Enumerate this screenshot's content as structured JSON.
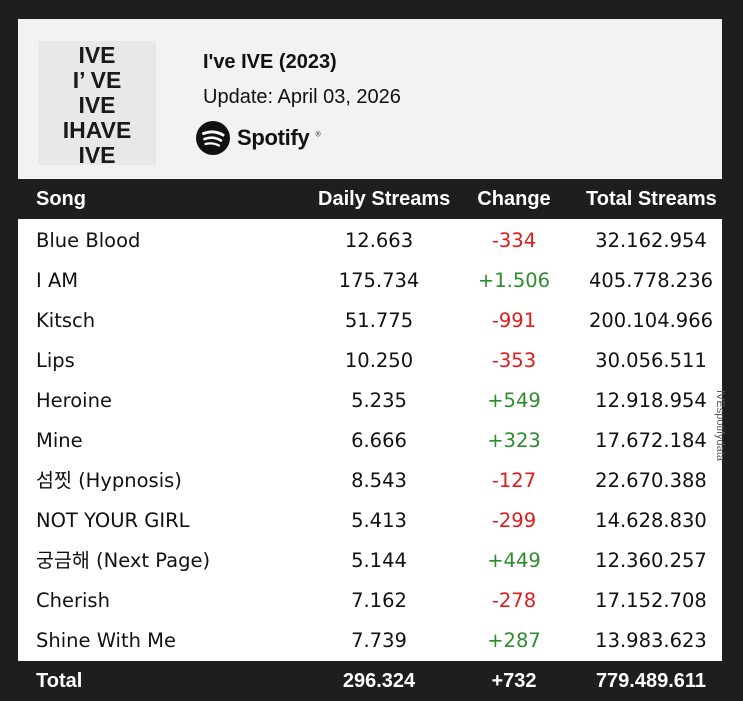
{
  "header": {
    "album_title": "I've IVE (2023)",
    "update_line": "Update: April 03, 2026",
    "cover_lines": [
      "IVE",
      "I’ VE",
      "IVE",
      "IHAVE",
      "IVE"
    ],
    "brand": "Spotify",
    "brand_icon": "spotify-logo-icon"
  },
  "columns": {
    "song": "Song",
    "daily": "Daily Streams",
    "change": "Change",
    "total": "Total Streams"
  },
  "rows": [
    {
      "song": "Blue Blood",
      "daily": "12.663",
      "change": "-334",
      "trend": "down",
      "total": "32.162.954"
    },
    {
      "song": "I AM",
      "daily": "175.734",
      "change": "+1.506",
      "trend": "up",
      "total": "405.778.236"
    },
    {
      "song": "Kitsch",
      "daily": "51.775",
      "change": "-991",
      "trend": "down",
      "total": "200.104.966"
    },
    {
      "song": "Lips",
      "daily": "10.250",
      "change": "-353",
      "trend": "down",
      "total": "30.056.511"
    },
    {
      "song": "Heroine",
      "daily": "5.235",
      "change": "+549",
      "trend": "up",
      "total": "12.918.954"
    },
    {
      "song": "Mine",
      "daily": "6.666",
      "change": "+323",
      "trend": "up",
      "total": "17.672.184"
    },
    {
      "song": "섬찟 (Hypnosis)",
      "daily": "8.543",
      "change": "-127",
      "trend": "down",
      "total": "22.670.388"
    },
    {
      "song": "NOT YOUR GIRL",
      "daily": "5.413",
      "change": "-299",
      "trend": "down",
      "total": "14.628.830"
    },
    {
      "song": "궁금해 (Next Page)",
      "daily": "5.144",
      "change": "+449",
      "trend": "up",
      "total": "12.360.257"
    },
    {
      "song": "Cherish",
      "daily": "7.162",
      "change": "-278",
      "trend": "down",
      "total": "17.152.708"
    },
    {
      "song": "Shine With Me",
      "daily": "7.739",
      "change": "+287",
      "trend": "up",
      "total": "13.983.623"
    }
  ],
  "totals": {
    "label": "Total",
    "daily": "296.324",
    "change": "+732",
    "total": "779.489.611"
  },
  "colors": {
    "positive": "#2e8b2e",
    "negative": "#e01b1b",
    "header_bar": "#1e1e1e"
  },
  "watermark": "IVEspotifydata"
}
